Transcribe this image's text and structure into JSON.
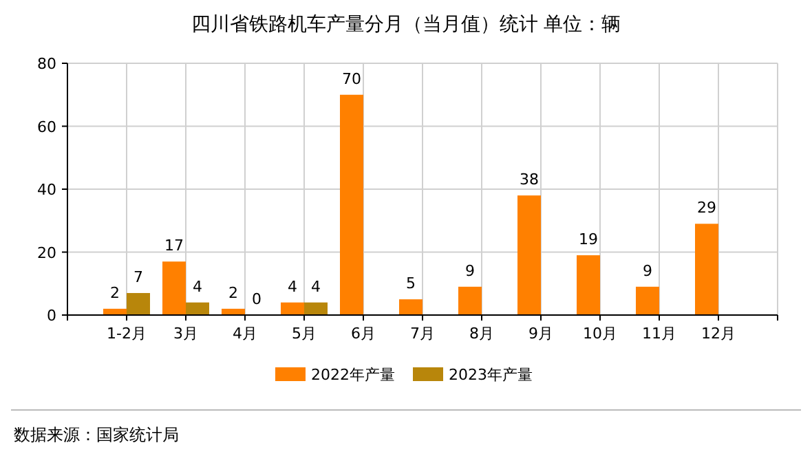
{
  "chart_data": {
    "type": "bar",
    "title": "四川省铁路机车产量分月（当月值）统计  单位：辆",
    "categories": [
      "1-2月",
      "3月",
      "4月",
      "5月",
      "6月",
      "7月",
      "8月",
      "9月",
      "10月",
      "11月",
      "12月"
    ],
    "series": [
      {
        "name": "2022年产量",
        "color": "#ff8000",
        "values": [
          2,
          17,
          2,
          4,
          70,
          5,
          9,
          38,
          19,
          9,
          29
        ]
      },
      {
        "name": "2023年产量",
        "color": "#b8860b",
        "values": [
          7,
          4,
          0,
          4,
          null,
          null,
          null,
          null,
          null,
          null,
          null
        ]
      }
    ],
    "ylim": [
      0,
      80
    ],
    "yticks": [
      0,
      20,
      40,
      60,
      80
    ],
    "grid": true,
    "legend": "bottom",
    "data_labels": true,
    "annotations": [
      "数据来源：国家统计局"
    ]
  }
}
